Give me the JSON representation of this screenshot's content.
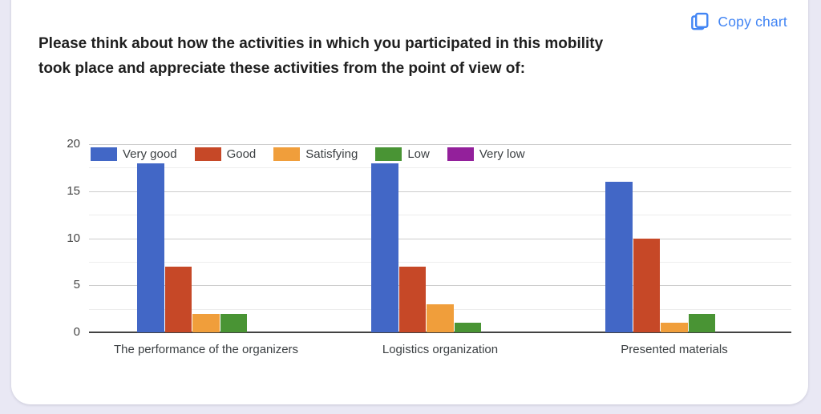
{
  "question": {
    "title": "Please think about how the activities in which you participated in this mobility took place and appreciate these activities from the point of view of:",
    "title_lines": [
      "Please think about how the activities in which you participated in this mobility",
      "took place and appreciate these activities from the point of view of:"
    ]
  },
  "toolbar": {
    "copy_chart_label": "Copy chart"
  },
  "colors": {
    "page_bg": "#E9E8F4",
    "card_bg": "#FFFFFF",
    "accent_blue": "#4285F4",
    "title_text": "#1F1F1F",
    "axis_text": "#444444",
    "category_text": "#3C4043",
    "grid_major": "#CCCCCC",
    "grid_minor": "#EDEDED",
    "baseline": "#424242"
  },
  "chart_data": {
    "type": "bar",
    "categories": [
      "The performance of the organizers",
      "Logistics organization",
      "Presented materials"
    ],
    "series": [
      {
        "name": "Very good",
        "color": "#4267C6",
        "values": [
          18,
          18,
          16
        ]
      },
      {
        "name": "Good",
        "color": "#C64827",
        "values": [
          7,
          7,
          10
        ]
      },
      {
        "name": "Satisfying",
        "color": "#F09E3B",
        "values": [
          2,
          3,
          1
        ]
      },
      {
        "name": "Low",
        "color": "#499434",
        "values": [
          2,
          1,
          2
        ]
      },
      {
        "name": "Very low",
        "color": "#93209B",
        "values": [
          0,
          0,
          0
        ]
      }
    ],
    "ylim": [
      0,
      20
    ],
    "yticks": [
      0,
      5,
      10,
      15,
      20
    ],
    "minor_yticks": [
      2.5,
      7.5,
      12.5,
      17.5
    ],
    "grid": true,
    "legend_position": "top-left",
    "xlabel": "",
    "ylabel": ""
  }
}
